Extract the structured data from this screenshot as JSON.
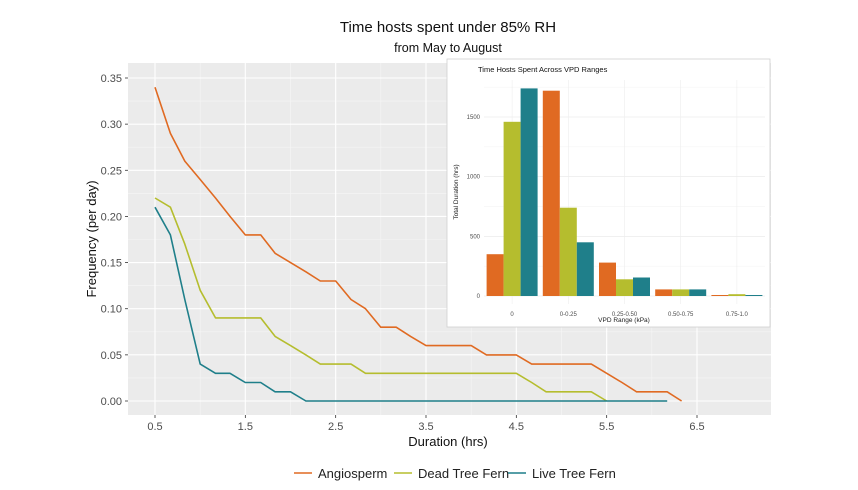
{
  "chart_data": [
    {
      "type": "line",
      "title": "Time hosts spent under 85% RH",
      "subtitle": "from May to August",
      "xlabel": "Duration (hrs)",
      "ylabel": "Frequency (per day)",
      "xlim": [
        0.5,
        6.5
      ],
      "ylim": [
        0,
        0.35
      ],
      "x_ticks": [
        "0.5",
        "1.5",
        "2.5",
        "3.5",
        "4.5",
        "5.5",
        "6.5"
      ],
      "x_tick_values": [
        0.5,
        1.5,
        2.5,
        3.5,
        4.5,
        5.5,
        6.5
      ],
      "y_ticks": [
        "0.00",
        "0.05",
        "0.10",
        "0.15",
        "0.20",
        "0.25",
        "0.30",
        "0.35"
      ],
      "y_tick_values": [
        0,
        0.05,
        0.1,
        0.15,
        0.2,
        0.25,
        0.3,
        0.35
      ],
      "grid": true,
      "legend_position": "bottom",
      "series": [
        {
          "name": "Angiosperm",
          "color": "#E06A22",
          "x": [
            0.5,
            0.67,
            0.83,
            1.0,
            1.17,
            1.33,
            1.5,
            1.67,
            1.83,
            2.0,
            2.17,
            2.33,
            2.5,
            2.67,
            2.83,
            3.0,
            3.17,
            3.33,
            3.5,
            3.67,
            3.83,
            4.0,
            4.17,
            4.33,
            4.5,
            4.67,
            4.83,
            5.0,
            5.17,
            5.33,
            5.5,
            5.67,
            5.83,
            6.0,
            6.17,
            6.33
          ],
          "y": [
            0.34,
            0.29,
            0.26,
            0.24,
            0.22,
            0.2,
            0.18,
            0.18,
            0.16,
            0.15,
            0.14,
            0.13,
            0.13,
            0.11,
            0.1,
            0.08,
            0.08,
            0.07,
            0.06,
            0.06,
            0.06,
            0.06,
            0.05,
            0.05,
            0.05,
            0.04,
            0.04,
            0.04,
            0.04,
            0.04,
            0.03,
            0.02,
            0.01,
            0.01,
            0.01,
            0.0
          ]
        },
        {
          "name": "Dead Tree Fern",
          "color": "#B5BD2E",
          "x": [
            0.5,
            0.67,
            0.83,
            1.0,
            1.17,
            1.33,
            1.5,
            1.67,
            1.83,
            2.0,
            2.17,
            2.33,
            2.5,
            2.67,
            2.83,
            3.0,
            4.5,
            4.67,
            4.83,
            5.0,
            5.17,
            5.33,
            5.5
          ],
          "y": [
            0.22,
            0.21,
            0.17,
            0.12,
            0.09,
            0.09,
            0.09,
            0.09,
            0.07,
            0.06,
            0.05,
            0.04,
            0.04,
            0.04,
            0.03,
            0.03,
            0.03,
            0.02,
            0.01,
            0.01,
            0.01,
            0.01,
            0.0
          ]
        },
        {
          "name": "Live Tree Fern",
          "color": "#1F7F8A",
          "x": [
            0.5,
            0.67,
            0.83,
            1.0,
            1.17,
            1.33,
            1.5,
            1.67,
            1.83,
            2.0,
            2.17,
            6.17
          ],
          "y": [
            0.21,
            0.18,
            0.11,
            0.04,
            0.03,
            0.03,
            0.02,
            0.02,
            0.01,
            0.01,
            0.0,
            0.0
          ]
        }
      ]
    },
    {
      "type": "bar",
      "title": "Time Hosts Spent Across VPD Ranges",
      "xlabel": "VPD Range (kPa)",
      "ylabel": "Total Duration (hrs)",
      "categories": [
        "0",
        "0-0.25",
        "0.25-0.50",
        "0.50-0.75",
        "0.75-1.0"
      ],
      "ylim": [
        0,
        1750
      ],
      "y_ticks": [
        "0",
        "500",
        "1000",
        "1500"
      ],
      "y_tick_values": [
        0,
        500,
        1000,
        1500
      ],
      "grid": true,
      "series": [
        {
          "name": "Angiosperm",
          "color": "#E06A22",
          "values": [
            350,
            1720,
            280,
            55,
            8
          ]
        },
        {
          "name": "Dead Tree Fern",
          "color": "#B5BD2E",
          "values": [
            1460,
            740,
            140,
            55,
            15
          ]
        },
        {
          "name": "Live Tree Fern",
          "color": "#1F7F8A",
          "values": [
            1740,
            450,
            155,
            55,
            8
          ]
        }
      ]
    }
  ]
}
